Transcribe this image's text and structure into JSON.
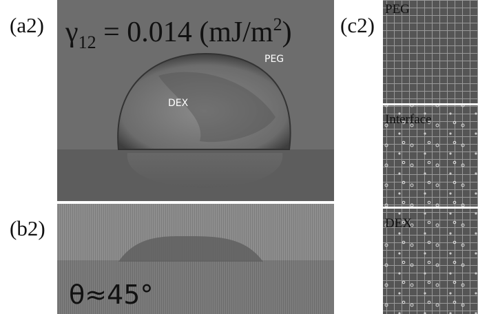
{
  "a2": {
    "label": "(a2)",
    "equation": {
      "symbol": "γ",
      "subscript": "12",
      "body": " = 0.014 (mJ/m",
      "superscript": "2",
      "end": ")"
    },
    "labels": [
      "PEG",
      "DEX"
    ]
  },
  "b2": {
    "label": "(b2)",
    "angle": "θ≈45°"
  },
  "c2": {
    "label": "(c2)",
    "panels": [
      "PEG",
      "Interface",
      "DEX"
    ]
  }
}
